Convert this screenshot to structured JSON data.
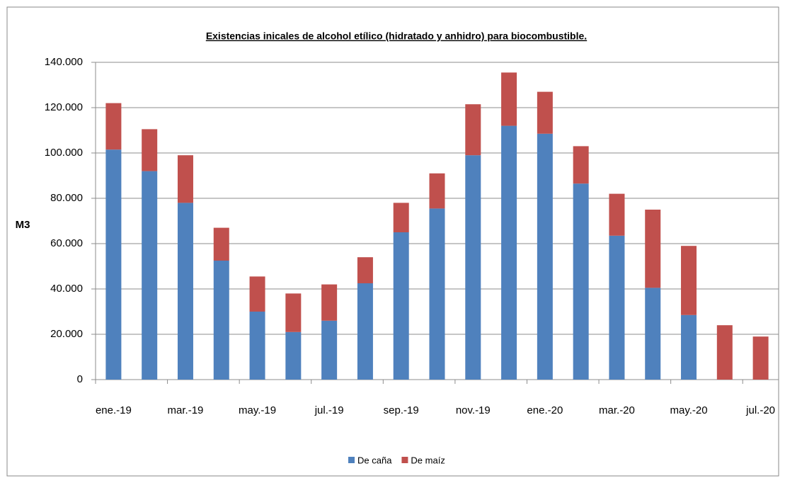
{
  "chart_data": {
    "type": "stacked_bar",
    "title": "Existencias inicales de alcohol etílico (hidratado  y anhidro) para biocombustible.",
    "y_label": "M3",
    "categories": [
      "ene.-19",
      null,
      "mar.-19",
      null,
      "may.-19",
      null,
      "jul.-19",
      null,
      "sep.-19",
      null,
      "nov.-19",
      null,
      "ene.-20",
      null,
      "mar.-20",
      null,
      "may.-20",
      null,
      "jul.-20"
    ],
    "series": [
      {
        "name": "De caña",
        "color": "#4f81bd",
        "values": [
          101500,
          92000,
          78000,
          52500,
          30000,
          21000,
          26000,
          42500,
          65000,
          75500,
          99000,
          112000,
          108500,
          86500,
          63500,
          40500,
          28500,
          0,
          0
        ]
      },
      {
        "name": "De maíz",
        "color": "#c0504d",
        "values": [
          20500,
          18500,
          21000,
          14500,
          15500,
          17000,
          16000,
          11500,
          13000,
          15500,
          22500,
          23500,
          18500,
          16500,
          18500,
          34500,
          30500,
          24000,
          19000
        ]
      }
    ],
    "ylim": [
      0,
      140000
    ],
    "yticks": [
      0,
      {
        "value": 20000,
        "label": "20.000"
      },
      {
        "value": 40000,
        "label": "40.000"
      },
      {
        "value": 60000,
        "label": "60.000"
      },
      {
        "value": 80000,
        "label": "80.000"
      },
      {
        "value": 100000,
        "label": "100.000"
      },
      {
        "value": 120000,
        "label": "120.000"
      },
      {
        "value": 140000,
        "label": "140.000"
      }
    ],
    "grid": true,
    "legend": "bottom"
  }
}
